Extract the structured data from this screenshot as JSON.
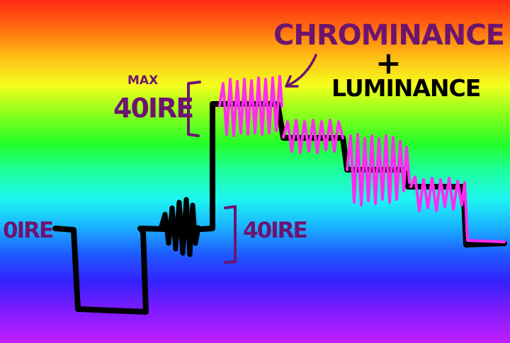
{
  "labels": {
    "chrominance": "CHROMINANCE",
    "plus": "+",
    "luminance": "LUMINANCE",
    "max": "MAX",
    "max_level": "40IRE",
    "zero_level": "0IRE",
    "burst_level": "40IRE"
  },
  "colors": {
    "luminance_trace": "#000000",
    "chrominance_trace": "#ff2cf0",
    "annotation": "#6d1470"
  }
}
